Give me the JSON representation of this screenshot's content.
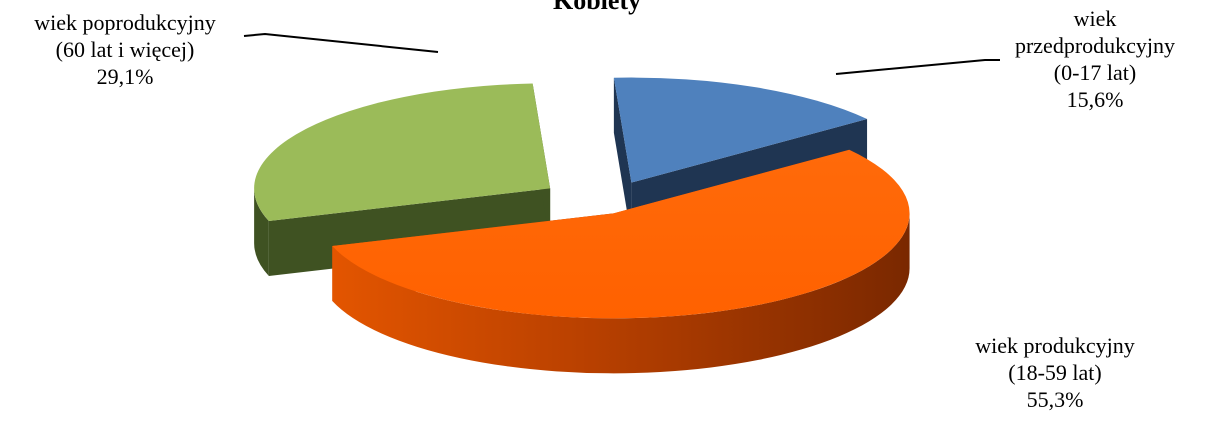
{
  "chart_data": {
    "type": "pie",
    "title": "Kobiety",
    "slices": [
      {
        "label_lines": [
          "wiek",
          "przedprodukcyjny",
          "(0-17 lat)"
        ],
        "value": 15.6,
        "value_text": "15,6%",
        "color": "#4F81BD"
      },
      {
        "label_lines": [
          "wiek produkcyjny",
          "(18-59 lat)"
        ],
        "value": 55.3,
        "value_text": "55,3%",
        "color": "#FF6600"
      },
      {
        "label_lines": [
          "wiek poprodukcyjny",
          "(60 lat i więcej)"
        ],
        "value": 29.1,
        "value_text": "29,1%",
        "color": "#9BBB59"
      }
    ],
    "legend": "none",
    "style": "3d-exploded"
  }
}
